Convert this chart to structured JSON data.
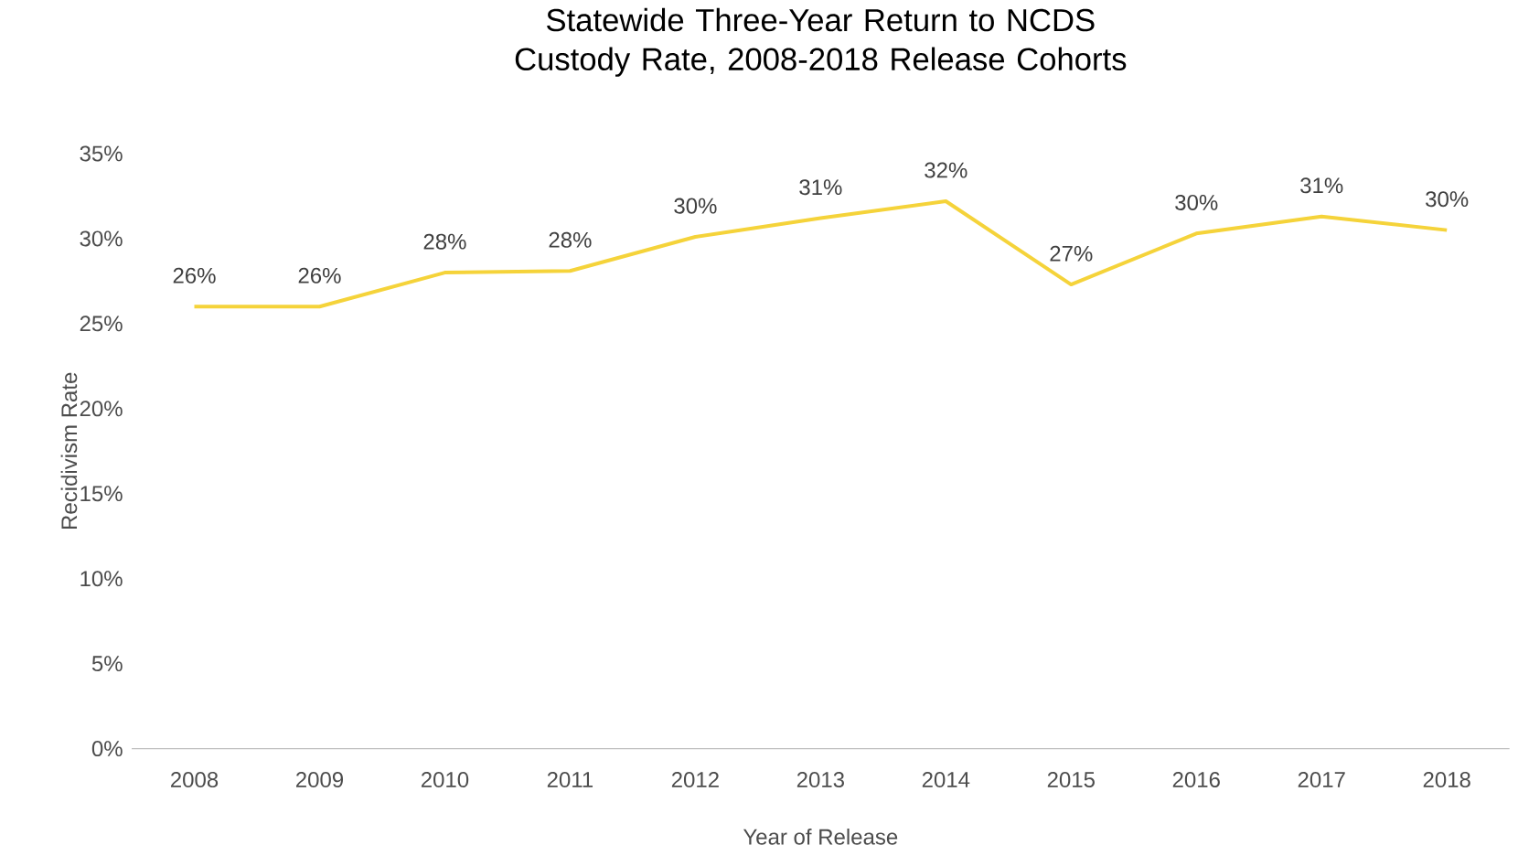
{
  "chart_data": {
    "type": "line",
    "title": "Statewide Three-Year Return to NCDS Custody Rate, 2008-2018 Release Cohorts",
    "xlabel": "Year of Release",
    "ylabel": "Recidivism Rate",
    "categories": [
      "2008",
      "2009",
      "2010",
      "2011",
      "2012",
      "2013",
      "2014",
      "2015",
      "2016",
      "2017",
      "2018"
    ],
    "series": [
      {
        "color": "#f5d33a",
        "values": [
          26.0,
          26.0,
          28.0,
          28.1,
          30.1,
          31.2,
          32.2,
          27.3,
          30.3,
          31.3,
          30.5
        ],
        "value_labels": [
          "26%",
          "26%",
          "28%",
          "28%",
          "30%",
          "31%",
          "32%",
          "27%",
          "30%",
          "31%",
          "30%"
        ]
      }
    ],
    "marker": "none",
    "ylim": [
      0,
      35
    ],
    "yticks": [
      {
        "value": 0,
        "label": "0%"
      },
      {
        "value": 5,
        "label": "5%"
      },
      {
        "value": 10,
        "label": "10%"
      },
      {
        "value": 15,
        "label": "15%"
      },
      {
        "value": 20,
        "label": "20%"
      },
      {
        "value": 25,
        "label": "25%"
      },
      {
        "value": 30,
        "label": "30%"
      },
      {
        "value": 35,
        "label": "35%"
      }
    ]
  }
}
